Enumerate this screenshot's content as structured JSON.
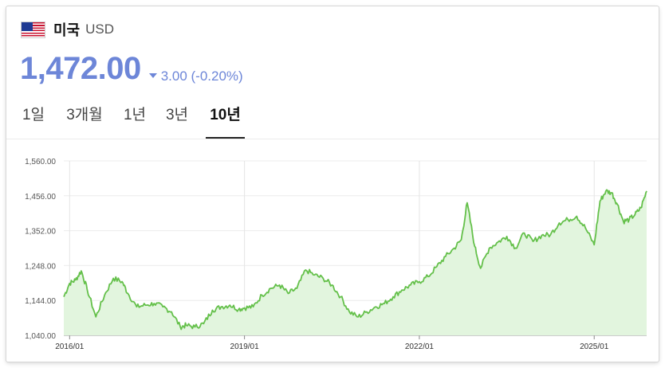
{
  "currency": {
    "country": "미국",
    "code": "USD",
    "flag_icon": "us-flag-icon"
  },
  "quote": {
    "price": "1,472.00",
    "change": "3.00 (-0.20%)",
    "direction": "down",
    "color": "#6d86d8"
  },
  "tabs": [
    {
      "label": "1일",
      "active": false
    },
    {
      "label": "3개월",
      "active": false
    },
    {
      "label": "1년",
      "active": false
    },
    {
      "label": "3년",
      "active": false
    },
    {
      "label": "10년",
      "active": true
    }
  ],
  "chart_data": {
    "type": "area",
    "line_color": "#64c04a",
    "fill_color": "#e2f5de",
    "grid": true,
    "ylim": [
      1040,
      1560
    ],
    "y_ticks": [
      "1,560.00",
      "1,456.00",
      "1,352.00",
      "1,248.00",
      "1,144.00",
      "1,040.00"
    ],
    "y_tick_values": [
      1560,
      1456,
      1352,
      1248,
      1144,
      1040
    ],
    "x_ticks": [
      "2016/01",
      "2019/01",
      "2022/01",
      "2025/01"
    ],
    "x_tick_values": [
      2016.0,
      2019.0,
      2022.0,
      2025.0
    ],
    "x_range": [
      2015.9,
      2025.9
    ],
    "series": [
      {
        "x": [
          2015.9,
          2016.0,
          2016.1,
          2016.2,
          2016.3,
          2016.45,
          2016.6,
          2016.75,
          2016.9,
          2017.0,
          2017.15,
          2017.3,
          2017.45,
          2017.6,
          2017.75,
          2017.9,
          2018.0,
          2018.15,
          2018.3,
          2018.45,
          2018.6,
          2018.75,
          2018.9,
          2019.0,
          2019.15,
          2019.3,
          2019.45,
          2019.6,
          2019.75,
          2019.9,
          2020.05,
          2020.2,
          2020.35,
          2020.5,
          2020.65,
          2020.8,
          2020.95,
          2021.1,
          2021.25,
          2021.4,
          2021.55,
          2021.7,
          2021.85,
          2022.0,
          2022.15,
          2022.3,
          2022.45,
          2022.6,
          2022.72,
          2022.82,
          2022.95,
          2023.05,
          2023.2,
          2023.35,
          2023.5,
          2023.65,
          2023.8,
          2023.95,
          2024.1,
          2024.25,
          2024.4,
          2024.55,
          2024.7,
          2024.85,
          2025.0,
          2025.1,
          2025.2,
          2025.3,
          2025.4,
          2025.5,
          2025.6,
          2025.7,
          2025.8,
          2025.9
        ],
        "y": [
          1155,
          1195,
          1205,
          1232,
          1178,
          1095,
          1160,
          1210,
          1200,
          1165,
          1125,
          1130,
          1135,
          1125,
          1110,
          1065,
          1070,
          1065,
          1075,
          1115,
          1125,
          1130,
          1118,
          1122,
          1125,
          1160,
          1180,
          1190,
          1165,
          1180,
          1235,
          1220,
          1210,
          1190,
          1155,
          1110,
          1095,
          1110,
          1125,
          1135,
          1155,
          1175,
          1190,
          1200,
          1215,
          1245,
          1275,
          1300,
          1325,
          1435,
          1305,
          1240,
          1300,
          1318,
          1335,
          1300,
          1345,
          1320,
          1338,
          1340,
          1375,
          1385,
          1395,
          1360,
          1310,
          1440,
          1470,
          1465,
          1430,
          1380,
          1385,
          1400,
          1420,
          1470
        ]
      }
    ]
  }
}
